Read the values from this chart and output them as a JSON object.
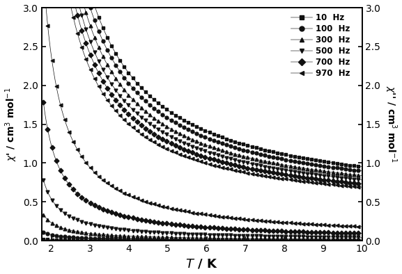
{
  "frequencies": [
    10,
    100,
    300,
    500,
    700,
    970
  ],
  "markers": [
    "s",
    "o",
    "^",
    "v",
    "D",
    "<"
  ],
  "legend_labels": [
    "10  Hz",
    "100  Hz",
    "300  Hz",
    "500  Hz",
    "700  Hz",
    "970  Hz"
  ],
  "T_min": 1.8,
  "T_max": 10.0,
  "ylim": [
    0.0,
    3.0
  ],
  "xlabel": "T / K",
  "ylabel_left": "χ' / cm³ mol⁻¹",
  "ylabel_right": "χ'' / cm³ mol⁻¹",
  "color": "#111111",
  "background": "#ffffff",
  "chi_prime_params": [
    {
      "A": 4.6,
      "theta": 1.35,
      "C": 0.42
    },
    {
      "A": 4.3,
      "theta": 1.35,
      "C": 0.4
    },
    {
      "A": 3.95,
      "theta": 1.35,
      "C": 0.38
    },
    {
      "A": 3.65,
      "theta": 1.35,
      "C": 0.36
    },
    {
      "A": 3.4,
      "theta": 1.35,
      "C": 0.34
    },
    {
      "A": 3.1,
      "theta": 1.35,
      "C": 0.33
    }
  ],
  "chi_double_prime_params": [
    {
      "A": 0.008,
      "theta": 1.35,
      "C": 0.001
    },
    {
      "A": 0.05,
      "theta": 1.35,
      "C": 0.001
    },
    {
      "A": 0.15,
      "theta": 1.35,
      "C": 0.001
    },
    {
      "A": 0.35,
      "theta": 1.35,
      "C": 0.001
    },
    {
      "A": 0.8,
      "theta": 1.35,
      "C": 0.001
    },
    {
      "A": 1.55,
      "theta": 1.35,
      "C": 0.001
    }
  ]
}
